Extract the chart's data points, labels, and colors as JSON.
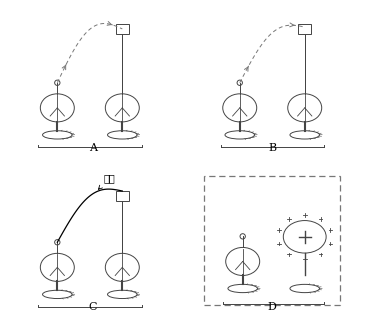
{
  "lc": "#444444",
  "dc": "#777777",
  "label_A": "A",
  "label_B": "B",
  "label_C": "C",
  "label_D": "D",
  "guide_text": "导线",
  "label_fs": 8,
  "guide_fs": 7
}
